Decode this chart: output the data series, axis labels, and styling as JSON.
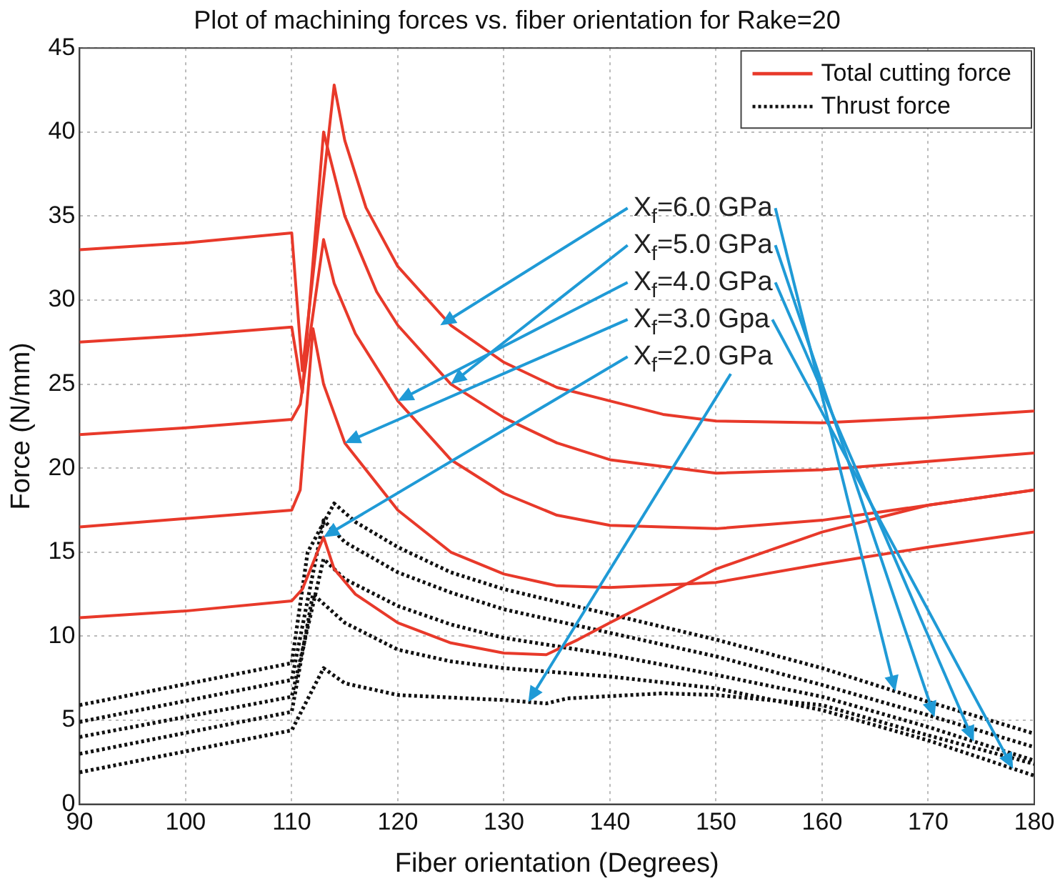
{
  "chart_data": {
    "type": "line",
    "title": "Plot of machining forces vs. fiber orientation for Rake=20",
    "xlabel": "Fiber orientation (Degrees)",
    "ylabel": "Force (N/mm)",
    "xlim": [
      90,
      180
    ],
    "xticks": [
      90,
      100,
      110,
      120,
      130,
      140,
      150,
      160,
      170,
      180
    ],
    "ylim": [
      0,
      45
    ],
    "yticks": [
      0,
      5,
      10,
      15,
      20,
      25,
      30,
      35,
      40,
      45
    ],
    "grid": true,
    "legend": "top right",
    "marker": "none",
    "series": [
      {
        "name": "Total cutting force",
        "color": "#e8392a",
        "line_style": "solid",
        "x": [
          90,
          100,
          110,
          111,
          114,
          115,
          117,
          120,
          125,
          130,
          135,
          140,
          145,
          150,
          160,
          170,
          180
        ],
        "values": [
          33.0,
          33.4,
          34.0,
          25.8,
          42.8,
          39.5,
          35.5,
          32.0,
          28.5,
          26.3,
          24.8,
          24.0,
          23.2,
          22.8,
          22.7,
          23.0,
          23.4
        ]
      },
      {
        "color": "#e8392a",
        "line_style": "solid",
        "x": [
          90,
          100,
          110,
          111,
          113,
          115,
          118,
          120,
          125,
          130,
          135,
          140,
          150,
          160,
          170,
          180
        ],
        "values": [
          27.5,
          27.9,
          28.4,
          24.5,
          40.0,
          35.0,
          30.5,
          28.5,
          25.0,
          23.0,
          21.5,
          20.5,
          19.7,
          19.9,
          20.4,
          20.9
        ]
      },
      {
        "color": "#e8392a",
        "line_style": "solid",
        "x": [
          90,
          100,
          110,
          110.8,
          113,
          114,
          116,
          120,
          125,
          130,
          135,
          140,
          150,
          160,
          170,
          180
        ],
        "values": [
          22.0,
          22.4,
          22.9,
          23.8,
          33.6,
          31.0,
          28.0,
          24.0,
          20.5,
          18.5,
          17.2,
          16.6,
          16.4,
          16.9,
          17.8,
          18.7
        ]
      },
      {
        "color": "#e8392a",
        "line_style": "solid",
        "x": [
          90,
          100,
          110,
          110.8,
          112,
          113,
          115,
          120,
          125,
          130,
          135,
          140,
          150,
          160,
          170,
          180
        ],
        "values": [
          16.5,
          17.0,
          17.5,
          18.7,
          28.3,
          25.0,
          21.5,
          17.5,
          15.0,
          13.7,
          13.0,
          12.9,
          13.2,
          14.3,
          15.3,
          16.2
        ]
      },
      {
        "color": "#e8392a",
        "line_style": "solid",
        "x": [
          90,
          100,
          110,
          111,
          113,
          114,
          116,
          120,
          125,
          130,
          134,
          137,
          140,
          150,
          160,
          170,
          180
        ],
        "values": [
          11.1,
          11.5,
          12.1,
          12.8,
          15.9,
          14.0,
          12.5,
          10.8,
          9.6,
          9.0,
          8.9,
          9.8,
          10.8,
          14.0,
          16.2,
          17.8,
          18.7
        ]
      },
      {
        "name": "Thrust force",
        "color": "#111111",
        "line_style": "dotted",
        "x": [
          90,
          110,
          111.5,
          114,
          116,
          120,
          125,
          130,
          140,
          150,
          160,
          170,
          180
        ],
        "values": [
          5.9,
          8.4,
          15.0,
          17.9,
          16.8,
          15.3,
          13.8,
          12.8,
          11.3,
          9.8,
          8.1,
          6.1,
          4.2
        ]
      },
      {
        "color": "#111111",
        "line_style": "dotted",
        "x": [
          90,
          110,
          113,
          115,
          120,
          125,
          130,
          140,
          150,
          160,
          170,
          180
        ],
        "values": [
          4.9,
          7.4,
          16.9,
          15.6,
          13.8,
          12.6,
          11.6,
          10.2,
          8.8,
          7.1,
          5.3,
          3.4
        ]
      },
      {
        "color": "#111111",
        "line_style": "dotted",
        "x": [
          90,
          110,
          113,
          115,
          120,
          125,
          130,
          140,
          150,
          160,
          170,
          180
        ],
        "values": [
          4.0,
          6.4,
          14.6,
          13.4,
          11.8,
          10.7,
          9.9,
          8.9,
          7.7,
          6.4,
          4.6,
          2.6
        ]
      },
      {
        "color": "#111111",
        "line_style": "dotted",
        "x": [
          90,
          110,
          112,
          115,
          120,
          125,
          130,
          140,
          150,
          160,
          170,
          180
        ],
        "values": [
          3.0,
          5.5,
          12.5,
          10.8,
          9.2,
          8.5,
          8.1,
          7.6,
          6.9,
          5.6,
          3.8,
          1.7
        ]
      },
      {
        "color": "#111111",
        "line_style": "dotted",
        "x": [
          90,
          110,
          113,
          115,
          120,
          130,
          134,
          136,
          145,
          150,
          160,
          170,
          180
        ],
        "values": [
          1.9,
          4.4,
          8.1,
          7.2,
          6.5,
          6.2,
          6.0,
          6.3,
          6.6,
          6.5,
          5.9,
          4.1,
          2.4
        ]
      }
    ],
    "annotations": [
      {
        "text": "X$_{f}$=6.0 GPa",
        "x": 124,
        "y": 28.5
      },
      {
        "text": "X$_{f}$=5.0 GPa",
        "x": 125,
        "y": 25.0
      },
      {
        "text": "X$_{f}$=4.0 GPa",
        "x": 120,
        "y": 24.0
      },
      {
        "text": "X$_{f}$=3.0 Gpa",
        "x": 115,
        "y": 21.5
      },
      {
        "text": "X$_{f}$=2.0 GPa",
        "x": 113,
        "y": 15.9
      }
    ]
  }
}
